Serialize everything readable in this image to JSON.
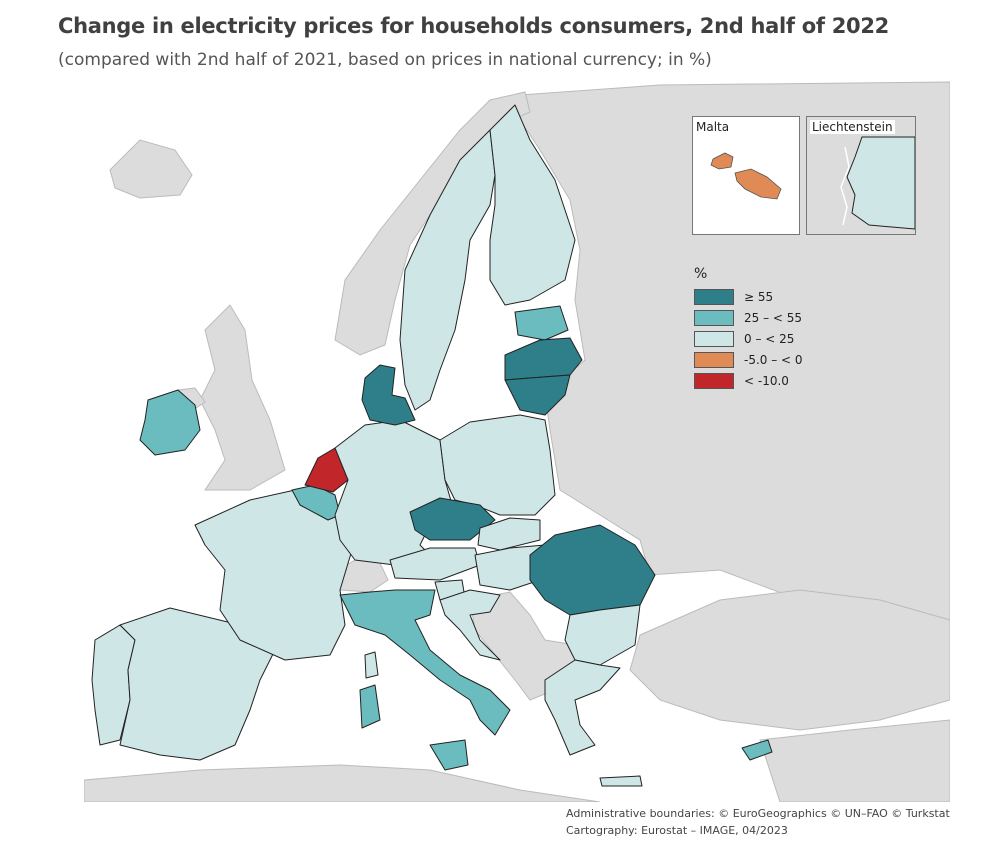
{
  "title": "Change in electricity prices for households consumers, 2nd half of 2022",
  "subtitle": "(compared with 2nd half of 2021, based on prices in national currency; in %)",
  "colors": {
    "ge55": "#2e7f89",
    "c25_55": "#6bbcbf",
    "c0_25": "#cfe6e6",
    "neg5_0": "#e08a55",
    "ltneg10": "#c0262a",
    "nodata": "#dcdcdc",
    "sea": "#ffffff",
    "border": "#222222"
  },
  "legend": {
    "title": "%",
    "items": [
      {
        "label": "≥ 55",
        "color": "#2e7f89"
      },
      {
        "label": "25 – < 55",
        "color": "#6bbcbf"
      },
      {
        "label": "0 – < 25",
        "color": "#cfe6e6"
      },
      {
        "label": "-5.0 – < 0",
        "color": "#e08a55"
      },
      {
        "label": "< -10.0",
        "color": "#c0262a"
      }
    ]
  },
  "insets": {
    "malta": {
      "label": "Malta"
    },
    "liechtenstein": {
      "label": "Liechtenstein"
    }
  },
  "footer": {
    "line1": "Administrative boundaries: © EuroGeographics © UN–FAO © Turkstat",
    "line2": "Cartography: Eurostat – IMAGE, 04/2023"
  }
}
